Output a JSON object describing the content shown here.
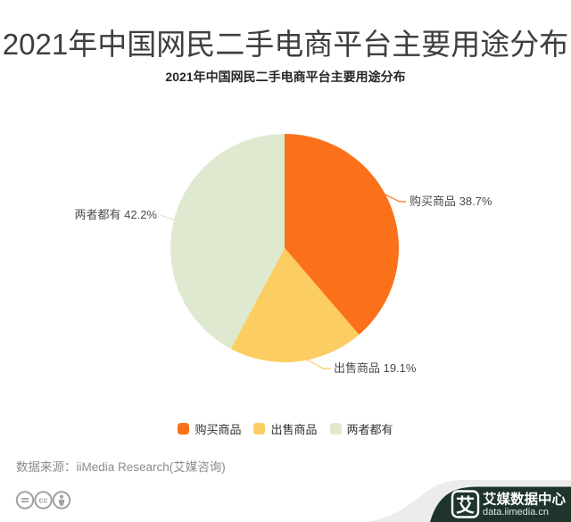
{
  "page": {
    "title": "2021年中国网民二手电商平台主要用途分布",
    "source": "数据来源：iiMedia Research(艾媒咨询)"
  },
  "chart_data": {
    "type": "pie",
    "title": "2021年中国网民二手电商平台主要用途分布",
    "categories": [
      "购买商品",
      "出售商品",
      "两者都有"
    ],
    "values": [
      38.7,
      19.1,
      42.2
    ],
    "unit": "%",
    "labels": [
      "购买商品 38.7%",
      "出售商品 19.1%",
      "两者都有 42.2%"
    ],
    "colors": [
      "#fb7119",
      "#fccd62",
      "#dfe9cf"
    ],
    "start_angle": "12-o'clock",
    "direction": "clockwise",
    "legend_position": "bottom",
    "label_color": "#4c4c4c"
  },
  "footer": {
    "license_icons": [
      "cc-nd-icon",
      "cc-icon",
      "cc-by-icon"
    ],
    "brand_logo_glyph": "艾",
    "brand_name": "艾媒数据中心",
    "brand_url": "data.iimedia.cn",
    "banner_color": "#1e342d"
  }
}
